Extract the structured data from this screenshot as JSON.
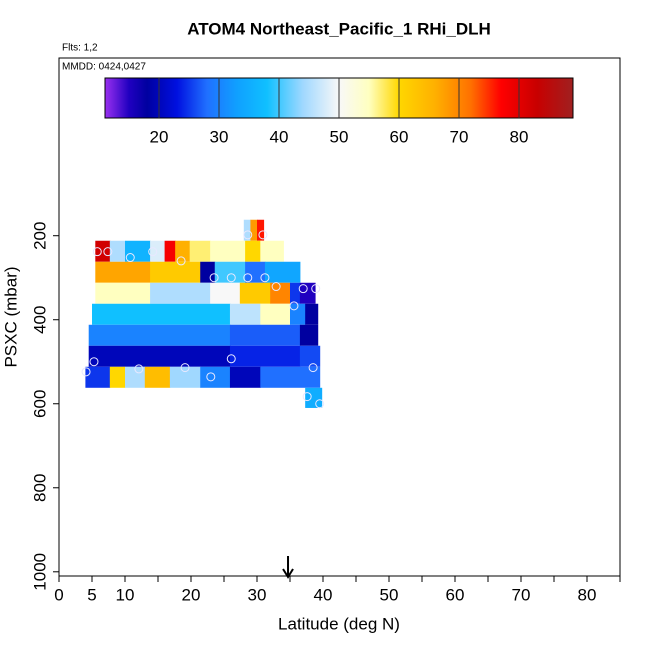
{
  "chart_data": {
    "type": "curtain",
    "title": "ATOM4 Northeast_Pacific_1 RHi_DLH",
    "flights": "Flts: 1,2",
    "dates": "MMDD: 0424,0427",
    "x_label": "Latitude (deg N)",
    "y_label": "PSXC (mbar)",
    "xlim": [
      0,
      85
    ],
    "xticks": [
      0,
      5,
      10,
      20,
      30,
      40,
      50,
      60,
      70,
      80
    ],
    "xminor": [
      15,
      25,
      35,
      45,
      55,
      65,
      75,
      85
    ],
    "ylim": [
      1010,
      -223
    ],
    "yticks": [
      200,
      400,
      600,
      800,
      1000
    ],
    "clim": [
      11,
      89
    ],
    "cticks": [
      20,
      30,
      40,
      50,
      60,
      70,
      80
    ],
    "colorscale": [
      [
        11,
        "#9a30f0"
      ],
      [
        15,
        "#2000c0"
      ],
      [
        18,
        "#0000a0"
      ],
      [
        23,
        "#0010e0"
      ],
      [
        28,
        "#2070ff"
      ],
      [
        33,
        "#10a0ff"
      ],
      [
        38,
        "#10c0ff"
      ],
      [
        44,
        "#a0d8ff"
      ],
      [
        50,
        "#f8f8f8"
      ],
      [
        55,
        "#ffffc0"
      ],
      [
        60,
        "#ffd700"
      ],
      [
        66,
        "#ffb000"
      ],
      [
        72,
        "#ff7000"
      ],
      [
        77,
        "#ff0000"
      ],
      [
        83,
        "#c80000"
      ],
      [
        89,
        "#a02020"
      ]
    ],
    "rows": [
      {
        "p": [
          162,
          212
        ],
        "lat": [
          28,
          29,
          30,
          31
        ],
        "values": [
          45,
          68,
          76
        ]
      },
      {
        "p": [
          212,
          262
        ],
        "lat": [
          5.5,
          7.7,
          10,
          13.8,
          16,
          17.6,
          19.8,
          22.9,
          28.2,
          30.5,
          34
        ],
        "values": [
          82,
          45,
          36,
          48,
          78,
          66,
          57,
          55,
          60,
          55
        ]
      },
      {
        "p": [
          262,
          312
        ],
        "lat": [
          5.5,
          13.8,
          21.4,
          23.6,
          28.2,
          31.2,
          36.5
        ],
        "values": [
          67,
          62,
          18,
          40,
          28,
          34
        ]
      },
      {
        "p": [
          312,
          362
        ],
        "lat": [
          5.5,
          13.8,
          22.9,
          27.4,
          32,
          35,
          36.5,
          38.8
        ],
        "values": [
          55,
          45,
          50,
          62,
          70,
          25,
          15
        ]
      },
      {
        "p": [
          362,
          412
        ],
        "lat": [
          5,
          25.9,
          30.5,
          35,
          37.3,
          39.2
        ],
        "values": [
          38,
          46,
          55,
          30,
          18
        ]
      },
      {
        "p": [
          412,
          462
        ],
        "lat": [
          4.5,
          25.9,
          36.5,
          39.2
        ],
        "values": [
          30,
          27,
          18
        ]
      },
      {
        "p": [
          462,
          512
        ],
        "lat": [
          4.5,
          25.9,
          36.5,
          39.5
        ],
        "values": [
          20,
          24,
          26
        ]
      },
      {
        "p": [
          512,
          562
        ],
        "lat": [
          4,
          7.7,
          10,
          13,
          16.8,
          21.4,
          25.9,
          30.5,
          39.5
        ],
        "values": [
          25,
          60,
          45,
          64,
          44,
          30,
          20,
          28
        ]
      },
      {
        "p": [
          562,
          610
        ],
        "lat": [
          37.3,
          39.8
        ],
        "values": [
          35
        ]
      }
    ],
    "points": {
      "lat": [
        5.8,
        7.4,
        10.8,
        14.2,
        18.5,
        28.6,
        30.9,
        23.5,
        26.1,
        28.6,
        31.2,
        32.9,
        37,
        38.9,
        35.6,
        26.1,
        5.3,
        4.1,
        12.1,
        19.1,
        23,
        38.5,
        37.6,
        39.5
      ],
      "p": [
        238,
        238,
        252,
        238,
        260,
        198,
        198,
        300,
        300,
        300,
        300,
        321,
        326,
        326,
        367,
        493,
        500,
        524,
        517,
        514,
        536,
        514,
        583,
        600
      ]
    },
    "arrow_lat": 34.7
  }
}
